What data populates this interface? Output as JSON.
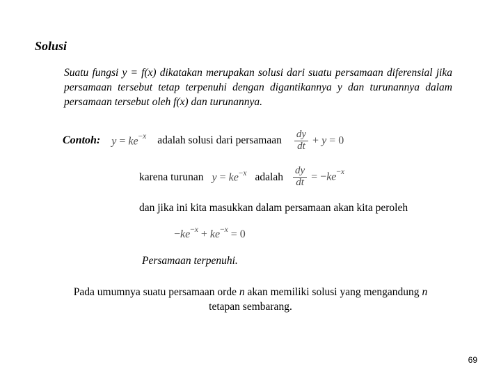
{
  "heading": "Solusi",
  "intro": "Suatu fungsi y = f(x) dikatakan merupakan solusi dari suatu persamaan diferensial jika persamaan tersebut tetap terpenuhi dengan digantikannya y dan turunannya dalam persamaan tersebut oleh f(x) dan turunannya.",
  "contoh_label": "Contoh:",
  "row1_text": "adalah solusi dari persamaan",
  "row2_left": "karena turunan",
  "row2_right": "adalah",
  "block3": "dan jika ini kita masukkan dalam persamaan akan kita peroleh",
  "terpenuhi": "Persamaan terpenuhi.",
  "conclusion_a": "Pada umumnya suatu persamaan orde ",
  "conclusion_n": "n",
  "conclusion_b": " akan memiliki solusi yang mengandung ",
  "conclusion_c": " tetapan sembarang.",
  "pagenum": "69",
  "math": {
    "eq1": {
      "lhs_y": "y",
      "eq": " = ",
      "k": "k",
      "e": "e",
      "exp_minus": "−",
      "exp_x": "x"
    },
    "eq2": {
      "dy": "dy",
      "dt": "dt",
      "plus": " + ",
      "y": "y",
      "eq": " = 0"
    },
    "eq3": {
      "dy": "dy",
      "dt": "dt",
      "eq": " = −",
      "k": "k",
      "e": "e",
      "exp_minus": "−",
      "exp_x": "x"
    },
    "eq4": {
      "minus": "−",
      "k1": "k",
      "e1": "e",
      "exp1m": "−",
      "exp1x": "x",
      "plus": " + ",
      "k2": "k",
      "e2": "e",
      "exp2m": "−",
      "exp2x": "x",
      "eq0": " = 0"
    }
  }
}
